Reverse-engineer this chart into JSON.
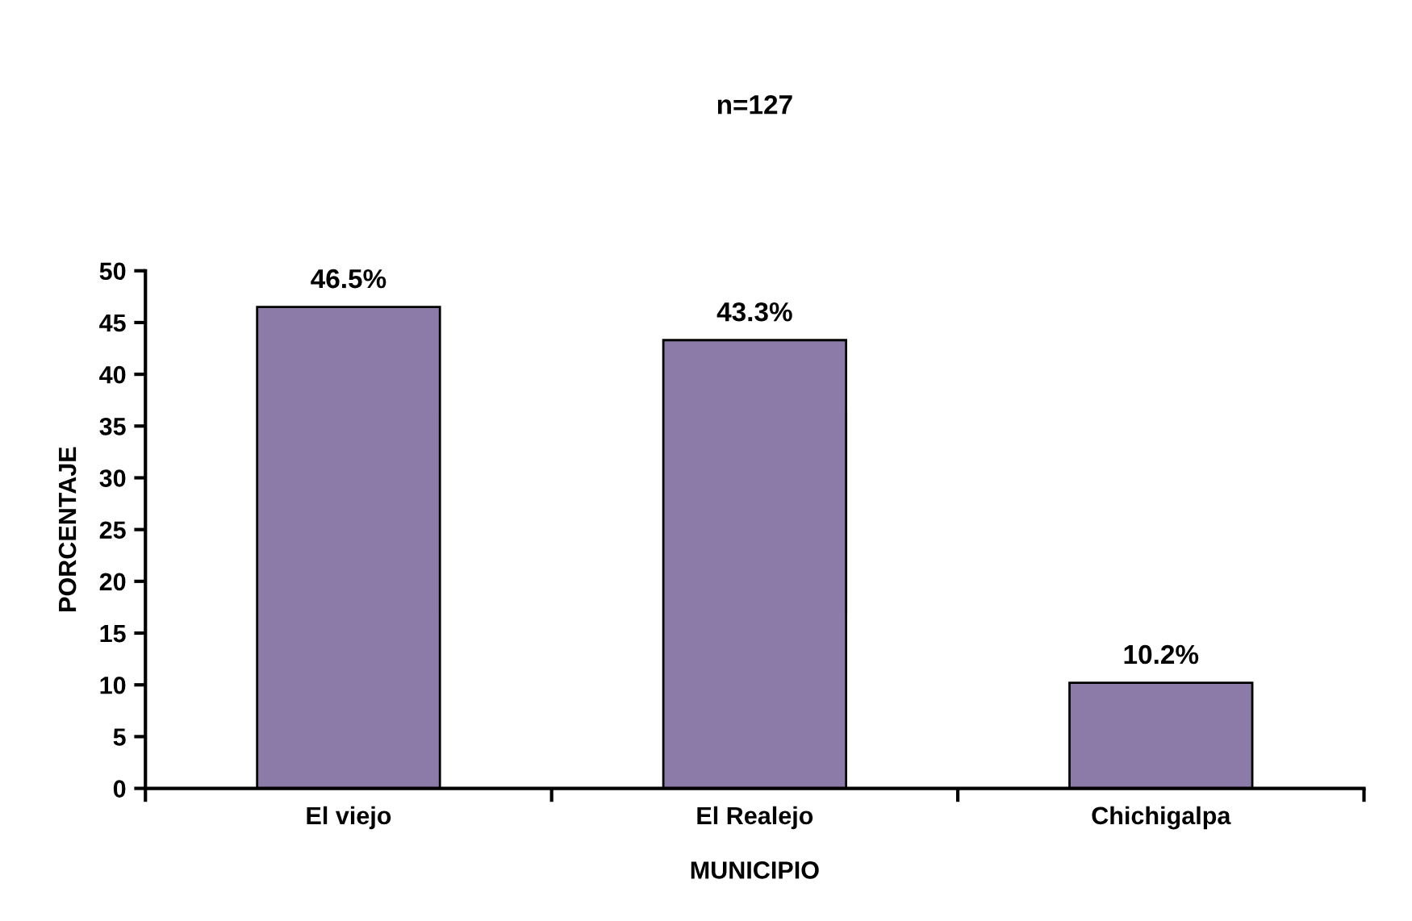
{
  "chart_data": {
    "type": "bar",
    "title": "n=127",
    "xlabel": "MUNICIPIO",
    "ylabel": "PORCENTAJE",
    "categories": [
      "El viejo",
      "El Realejo",
      "Chichigalpa"
    ],
    "values": [
      46.5,
      43.3,
      10.2
    ],
    "value_labels": [
      "46.5%",
      "43.3%",
      "10.2%"
    ],
    "color": "#8c7aa8",
    "ylim": [
      0,
      50
    ],
    "yticks": [
      0,
      5,
      10,
      15,
      20,
      25,
      30,
      35,
      40,
      45,
      50
    ],
    "grid": false,
    "legend": false
  }
}
